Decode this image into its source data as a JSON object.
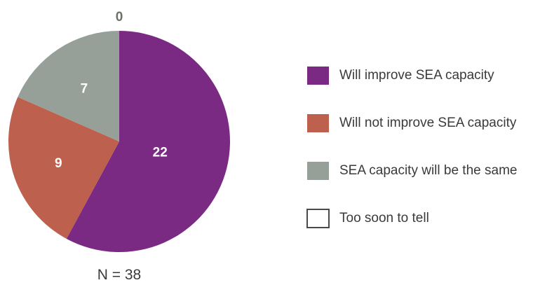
{
  "chart_data": {
    "type": "pie",
    "categories": [
      "Will improve SEA capacity",
      "Will not improve SEA capacity",
      "SEA capacity will be the same",
      "Too soon to tell"
    ],
    "values": [
      22,
      9,
      7,
      0
    ],
    "value_labels": [
      "22",
      "9",
      "7",
      "0"
    ],
    "colors": [
      "#7b2a84",
      "#bd614e",
      "#96a099",
      "#ffffff"
    ],
    "n_label": "N = 38",
    "legend_position": "right"
  }
}
